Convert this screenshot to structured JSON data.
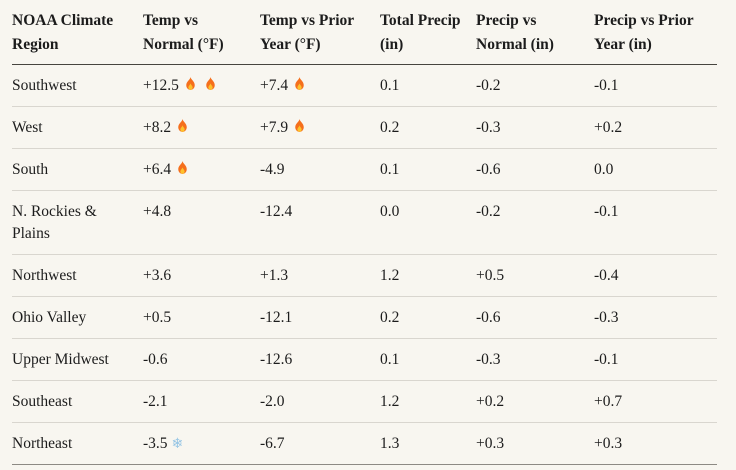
{
  "table": {
    "columns": [
      {
        "id": "region",
        "label": "NOAA Climate Region"
      },
      {
        "id": "temp-vs-normal",
        "label": "Temp vs Normal (°F)"
      },
      {
        "id": "temp-vs-prior",
        "label": "Temp vs Prior Year (°F)"
      },
      {
        "id": "total-precip",
        "label": "Total Precip (in)"
      },
      {
        "id": "precip-vs-normal",
        "label": "Precip vs Normal (in)"
      },
      {
        "id": "precip-vs-prior",
        "label": "Precip vs Prior Year (in)"
      }
    ],
    "rows": [
      {
        "cells": [
          {
            "text": "Southwest"
          },
          {
            "text": "+12.5",
            "icons": [
              "fire-icon",
              "fire-icon"
            ]
          },
          {
            "text": "+7.4",
            "icons": [
              "fire-icon"
            ]
          },
          {
            "text": "0.1"
          },
          {
            "text": "-0.2"
          },
          {
            "text": "-0.1"
          }
        ]
      },
      {
        "cells": [
          {
            "text": "West"
          },
          {
            "text": "+8.2",
            "icons": [
              "fire-icon"
            ]
          },
          {
            "text": "+7.9",
            "icons": [
              "fire-icon"
            ]
          },
          {
            "text": "0.2"
          },
          {
            "text": "-0.3"
          },
          {
            "text": "+0.2"
          }
        ]
      },
      {
        "cells": [
          {
            "text": "South"
          },
          {
            "text": "+6.4",
            "icons": [
              "fire-icon"
            ]
          },
          {
            "text": "-4.9"
          },
          {
            "text": "0.1"
          },
          {
            "text": "-0.6"
          },
          {
            "text": "0.0"
          }
        ]
      },
      {
        "cells": [
          {
            "text": "N. Rockies & Plains"
          },
          {
            "text": "+4.8"
          },
          {
            "text": "-12.4"
          },
          {
            "text": "0.0"
          },
          {
            "text": "-0.2"
          },
          {
            "text": "-0.1"
          }
        ]
      },
      {
        "cells": [
          {
            "text": "Northwest"
          },
          {
            "text": "+3.6"
          },
          {
            "text": "+1.3"
          },
          {
            "text": "1.2"
          },
          {
            "text": "+0.5"
          },
          {
            "text": "-0.4"
          }
        ]
      },
      {
        "cells": [
          {
            "text": "Ohio Valley"
          },
          {
            "text": "+0.5"
          },
          {
            "text": "-12.1"
          },
          {
            "text": "0.2"
          },
          {
            "text": "-0.6"
          },
          {
            "text": "-0.3"
          }
        ]
      },
      {
        "cells": [
          {
            "text": "Upper Midwest"
          },
          {
            "text": "-0.6"
          },
          {
            "text": "-12.6"
          },
          {
            "text": "0.1"
          },
          {
            "text": "-0.3"
          },
          {
            "text": "-0.1"
          }
        ]
      },
      {
        "cells": [
          {
            "text": "Southeast"
          },
          {
            "text": "-2.1"
          },
          {
            "text": "-2.0"
          },
          {
            "text": "1.2"
          },
          {
            "text": "+0.2"
          },
          {
            "text": "+0.7"
          }
        ]
      },
      {
        "cells": [
          {
            "text": "Northeast"
          },
          {
            "text": "-3.5",
            "icons": [
              "snowflake-icon"
            ]
          },
          {
            "text": "-6.7"
          },
          {
            "text": "1.3"
          },
          {
            "text": "+0.3"
          },
          {
            "text": "+0.3"
          }
        ]
      }
    ]
  },
  "icons": {
    "fire": {
      "body_color": "#f56f1c",
      "core_color": "#fdc22d"
    },
    "snowflake": {
      "glyph": "❄",
      "color": "#94c4e4"
    }
  },
  "colors": {
    "background": "#f8f6f0",
    "text": "#1c1c1c",
    "header_rule": "#47453f",
    "row_rule": "#d9d6cf",
    "bottom_rule": "#8d8a84"
  }
}
